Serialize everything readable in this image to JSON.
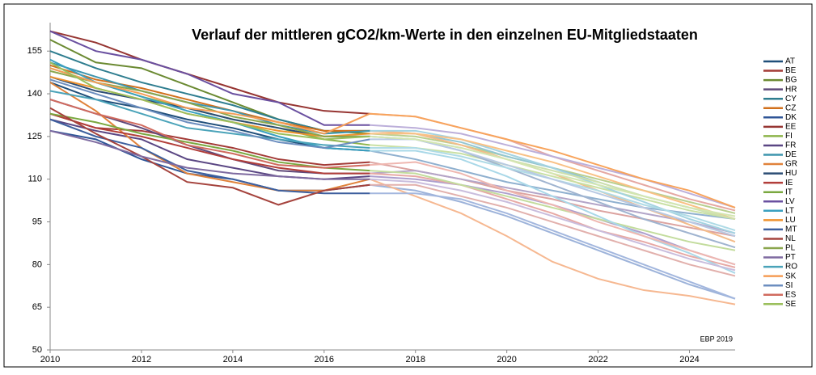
{
  "chart_data": {
    "type": "line",
    "title": "Verlauf der mittleren gCO2/km-Werte in den einzelnen EU-Mitgliedstaaten",
    "annotation": "EBP 2019",
    "x": [
      2010,
      2011,
      2012,
      2013,
      2014,
      2015,
      2016,
      2017,
      2018,
      2019,
      2020,
      2021,
      2022,
      2023,
      2024,
      2025
    ],
    "xlim": [
      2010,
      2025
    ],
    "xticks": [
      2010,
      2012,
      2014,
      2016,
      2018,
      2020,
      2022,
      2024
    ],
    "ylim": [
      50,
      165
    ],
    "yticks": [
      50,
      65,
      80,
      95,
      110,
      125,
      140,
      155
    ],
    "grid": false,
    "legend": "right",
    "projection_start": 2017,
    "series": [
      {
        "name": "AT",
        "color": "#1f4e79",
        "projection_color": "#8fb0cf",
        "values": [
          144,
          138,
          135,
          131,
          128,
          124,
          121,
          120,
          117,
          113,
          109,
          106,
          103,
          100,
          98,
          96
        ]
      },
      {
        "name": "BE",
        "color": "#a33b37",
        "projection_color": "#dca3a0",
        "values": [
          133,
          128,
          127,
          124,
          121,
          117,
          115,
          116,
          113,
          110,
          106,
          103,
          99,
          96,
          93,
          90
        ]
      },
      {
        "name": "BG",
        "color": "#6b8a32",
        "projection_color": "#b9cf8f",
        "values": [
          159,
          151,
          149,
          143,
          137,
          131,
          127,
          126,
          125,
          122,
          118,
          114,
          110,
          106,
          102,
          98
        ]
      },
      {
        "name": "HR",
        "color": "#5f497a",
        "projection_color": "#b3a5c8",
        "values": [
          138,
          133,
          128,
          122,
          117,
          113,
          112,
          112,
          113,
          110,
          107,
          104,
          101,
          98,
          95,
          91
        ]
      },
      {
        "name": "CY",
        "color": "#2e7d8f",
        "projection_color": "#93c6d2",
        "values": [
          155,
          149,
          144,
          140,
          136,
          131,
          127,
          127,
          126,
          123,
          118,
          114,
          109,
          104,
          100,
          96
        ]
      },
      {
        "name": "CZ",
        "color": "#d1701c",
        "projection_color": "#f3bb89",
        "values": [
          150,
          145,
          142,
          138,
          134,
          130,
          127,
          127,
          126,
          122,
          117,
          112,
          106,
          100,
          94,
          88
        ]
      },
      {
        "name": "DK",
        "color": "#2f5597",
        "projection_color": "#9db3da",
        "values": [
          127,
          124,
          117,
          112,
          110,
          106,
          106,
          108,
          106,
          102,
          97,
          91,
          85,
          79,
          73,
          68
        ]
      },
      {
        "name": "EE",
        "color": "#963532",
        "projection_color": "#e5a8a3",
        "values": [
          162,
          158,
          152,
          147,
          142,
          137,
          134,
          133,
          132,
          128,
          124,
          118,
          113,
          108,
          103,
          99
        ]
      },
      {
        "name": "FI",
        "color": "#8db44a",
        "projection_color": "#c9e0a4",
        "values": [
          149,
          144,
          139,
          135,
          131,
          128,
          124,
          122,
          121,
          119,
          115,
          111,
          107,
          103,
          99,
          96
        ]
      },
      {
        "name": "FR",
        "color": "#5a4683",
        "projection_color": "#ad9fcd",
        "values": [
          131,
          127,
          124,
          117,
          114,
          111,
          110,
          111,
          110,
          108,
          105,
          101,
          96,
          91,
          85,
          80
        ]
      },
      {
        "name": "DE",
        "color": "#3e95ad",
        "projection_color": "#a4d3e1",
        "values": [
          151,
          146,
          141,
          137,
          134,
          129,
          126,
          127,
          127,
          124,
          119,
          114,
          108,
          102,
          96,
          91
        ]
      },
      {
        "name": "GR",
        "color": "#e0823a",
        "projection_color": "#f6b891",
        "values": [
          144,
          134,
          121,
          112,
          109,
          106,
          106,
          110,
          104,
          98,
          90,
          81,
          75,
          71,
          69,
          66
        ]
      },
      {
        "name": "HU",
        "color": "#2c4d75",
        "projection_color": "#a0b4d0",
        "values": [
          146,
          141,
          138,
          135,
          131,
          128,
          125,
          125,
          124,
          120,
          114,
          108,
          102,
          96,
          91,
          86
        ]
      },
      {
        "name": "IE",
        "color": "#b23e3a",
        "projection_color": "#e7a9a5",
        "values": [
          133,
          128,
          125,
          121,
          117,
          114,
          112,
          112,
          111,
          108,
          103,
          98,
          92,
          88,
          83,
          79
        ]
      },
      {
        "name": "IT",
        "color": "#7aa83f",
        "projection_color": "#c3dc9d",
        "values": [
          133,
          130,
          126,
          123,
          120,
          116,
          114,
          113,
          112,
          108,
          104,
          100,
          96,
          92,
          88,
          85
        ]
      },
      {
        "name": "LV",
        "color": "#6a50a0",
        "projection_color": "#bcafda",
        "values": [
          162,
          155,
          152,
          147,
          140,
          137,
          129,
          129,
          128,
          126,
          122,
          118,
          114,
          110,
          105,
          100
        ]
      },
      {
        "name": "LT",
        "color": "#3aa0c0",
        "projection_color": "#a9d8e8",
        "values": [
          152,
          144,
          139,
          134,
          130,
          125,
          121,
          120,
          120,
          117,
          111,
          104,
          97,
          90,
          84,
          77
        ]
      },
      {
        "name": "LU",
        "color": "#f0922e",
        "projection_color": "#f9c185",
        "values": [
          146,
          142,
          138,
          133,
          130,
          127,
          125,
          126,
          126,
          124,
          120,
          116,
          111,
          106,
          101,
          96
        ]
      },
      {
        "name": "MT",
        "color": "#3d5f9e",
        "projection_color": "#a3b7de",
        "values": [
          131,
          125,
          121,
          113,
          110,
          106,
          105,
          105,
          105,
          103,
          98,
          92,
          86,
          80,
          74,
          68
        ]
      },
      {
        "name": "NL",
        "color": "#a5433d",
        "projection_color": "#e2b0ac",
        "values": [
          135,
          126,
          118,
          109,
          107,
          101,
          106,
          108,
          108,
          104,
          100,
          95,
          90,
          85,
          80,
          76
        ]
      },
      {
        "name": "PL",
        "color": "#8aa64d",
        "projection_color": "#cfe0ad",
        "values": [
          148,
          144,
          141,
          137,
          132,
          129,
          125,
          125,
          124,
          121,
          117,
          113,
          109,
          104,
          100,
          96
        ]
      },
      {
        "name": "PT",
        "color": "#7e6aa0",
        "projection_color": "#c9bddd",
        "values": [
          127,
          123,
          118,
          114,
          112,
          111,
          110,
          110,
          109,
          106,
          102,
          97,
          92,
          87,
          82,
          78
        ]
      },
      {
        "name": "RO",
        "color": "#4aa3b9",
        "projection_color": "#afdbe6",
        "values": [
          141,
          138,
          133,
          128,
          126,
          124,
          122,
          121,
          121,
          118,
          114,
          110,
          106,
          101,
          97,
          92
        ]
      },
      {
        "name": "SK",
        "color": "#f59d56",
        "projection_color": "#f8a45c",
        "values": [
          149,
          144,
          140,
          135,
          133,
          130,
          126,
          133,
          132,
          128,
          124,
          120,
          115,
          110,
          106,
          100
        ]
      },
      {
        "name": "SI",
        "color": "#6c8ebf",
        "projection_color": "#b8c9e3",
        "values": [
          145,
          140,
          135,
          130,
          127,
          123,
          121,
          124,
          124,
          120,
          115,
          110,
          105,
          100,
          95,
          90
        ]
      },
      {
        "name": "ES",
        "color": "#d06a5e",
        "projection_color": "#efb7b0",
        "values": [
          138,
          133,
          129,
          122,
          119,
          115,
          114,
          115,
          116,
          112,
          106,
          101,
          95,
          90,
          85,
          80
        ]
      },
      {
        "name": "SE",
        "color": "#9bbf5c",
        "projection_color": "#d3e6b2",
        "values": [
          151,
          142,
          138,
          133,
          130,
          126,
          124,
          125,
          124,
          121,
          117,
          112,
          108,
          104,
          100,
          97
        ]
      }
    ]
  }
}
